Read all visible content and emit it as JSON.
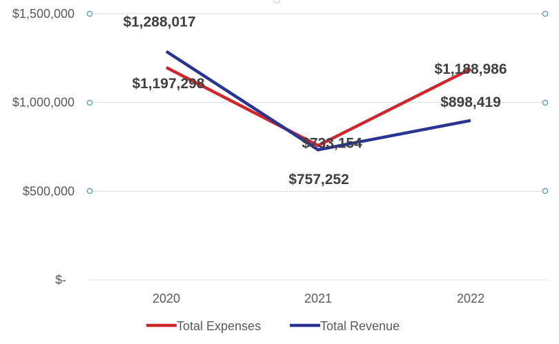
{
  "chart_data": {
    "type": "line",
    "title": "",
    "xlabel": "",
    "ylabel": "",
    "categories": [
      "2020",
      "2021",
      "2022"
    ],
    "ylim": [
      0,
      1500000
    ],
    "y_ticks": [
      0,
      500000,
      1000000,
      1500000
    ],
    "y_tick_labels": [
      "$-",
      "$500,000",
      "$1,000,000",
      "$1,500,000"
    ],
    "grid": true,
    "legend_position": "bottom",
    "series": [
      {
        "name": "Total Expenses",
        "color": "#d0262e",
        "values": [
          1197298,
          757252,
          1188986
        ],
        "labels": [
          "$1,197,298",
          "$757,252",
          "$1,188,986"
        ]
      },
      {
        "name": "Total Revenue",
        "color": "#283593",
        "values": [
          1288017,
          733154,
          898419
        ],
        "labels": [
          "$1,288,017",
          "$733,154",
          "$898,419"
        ]
      }
    ],
    "gridline_color": "#d9d9d9",
    "handle_color": "#4a90c2"
  }
}
